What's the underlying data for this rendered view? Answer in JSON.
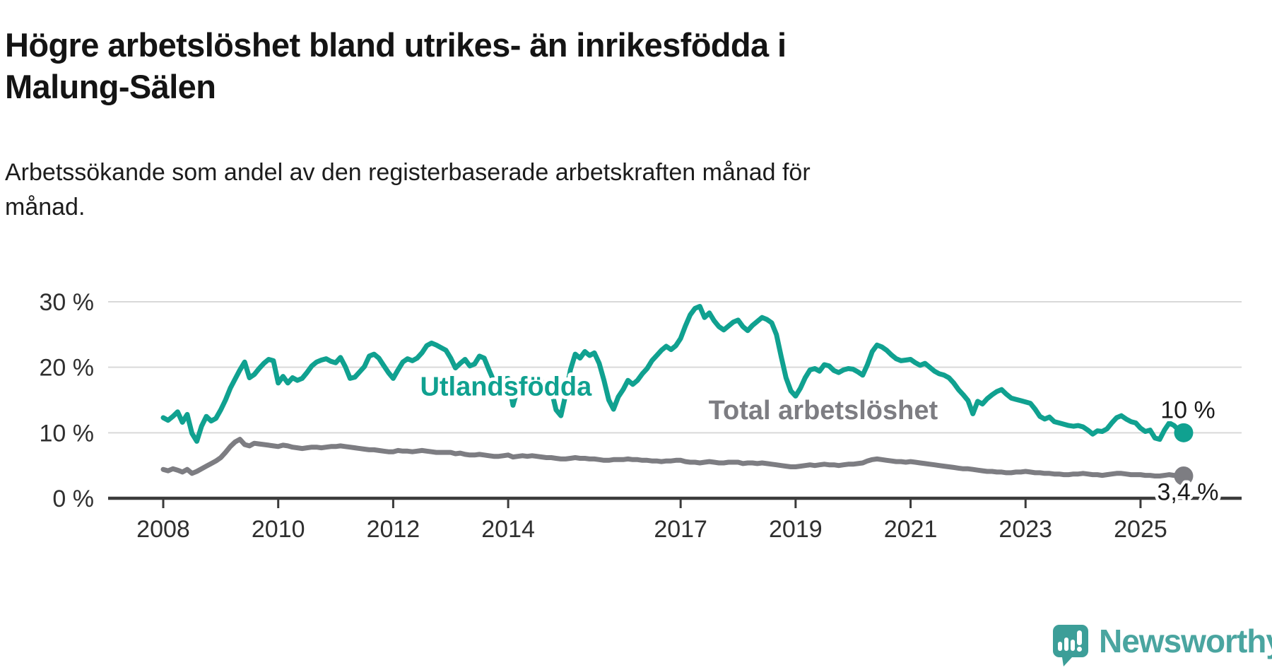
{
  "header": {
    "title_lines": [
      "Högre arbetslöshet bland utrikes- än inrikesfödda i",
      "Malung-Sälen"
    ],
    "subtitle_lines": [
      "Arbetssökande som andel av den registerbaserade arbetskraften månad för",
      "månad."
    ]
  },
  "colors": {
    "foreign_line": "#10A190",
    "total_line": "#7D7D82",
    "grid": "#D9D9D9",
    "axis": "#3B3B3B",
    "tick_text": "#2F2F2F",
    "end_label_text": "#1A1A1A",
    "logo_bubble": "#3C9E98",
    "logo_text": "#4AA5A0"
  },
  "chart_data": {
    "type": "line",
    "unit": "%",
    "start_month": "2008-01",
    "end_month": "2025-10",
    "points_per_year": 12,
    "ylim": [
      0,
      32
    ],
    "grid": true,
    "yticks": [
      {
        "value": 0,
        "label": "0 %"
      },
      {
        "value": 10,
        "label": "10 %"
      },
      {
        "value": 20,
        "label": "20 %"
      },
      {
        "value": 30,
        "label": "30 %"
      }
    ],
    "xticks": [
      {
        "year": 2008,
        "label": "2008"
      },
      {
        "year": 2010,
        "label": "2010"
      },
      {
        "year": 2012,
        "label": "2012"
      },
      {
        "year": 2014,
        "label": "2014"
      },
      {
        "year": 2017,
        "label": "2017"
      },
      {
        "year": 2019,
        "label": "2019"
      },
      {
        "year": 2021,
        "label": "2021"
      },
      {
        "year": 2023,
        "label": "2023"
      },
      {
        "year": 2025,
        "label": "2025"
      }
    ],
    "series": [
      {
        "name": "Utlandsfödda",
        "color": "#10A190",
        "end_label": "10 %",
        "values": [
          12.3,
          11.9,
          12.5,
          13.2,
          11.6,
          12.8,
          9.9,
          8.7,
          11.0,
          12.5,
          11.8,
          12.2,
          13.5,
          15.0,
          16.8,
          18.2,
          19.6,
          20.8,
          18.4,
          18.9,
          19.8,
          20.6,
          21.2,
          21.0,
          17.6,
          18.6,
          17.6,
          18.4,
          18.0,
          18.3,
          19.2,
          20.2,
          20.8,
          21.1,
          21.3,
          20.9,
          20.7,
          21.5,
          20.1,
          18.3,
          18.5,
          19.3,
          20.1,
          21.7,
          22.0,
          21.4,
          20.3,
          19.2,
          18.3,
          19.6,
          20.8,
          21.3,
          21.0,
          21.4,
          22.2,
          23.3,
          23.7,
          23.4,
          23.0,
          22.6,
          21.4,
          19.9,
          20.6,
          21.2,
          20.2,
          20.5,
          21.7,
          21.4,
          19.6,
          17.9,
          18.4,
          18.2,
          18.3,
          14.2,
          16.8,
          18.4,
          18.6,
          18.0,
          17.4,
          17.8,
          17.2,
          16.6,
          13.5,
          12.6,
          15.8,
          19.6,
          22.0,
          21.4,
          22.4,
          21.8,
          22.2,
          20.6,
          18.0,
          15.0,
          13.6,
          15.5,
          16.6,
          18.0,
          17.4,
          18.0,
          19.0,
          19.8,
          21.0,
          21.8,
          22.6,
          23.2,
          22.7,
          23.3,
          24.4,
          26.3,
          28.0,
          29.0,
          29.3,
          27.6,
          28.3,
          27.1,
          26.2,
          25.7,
          26.3,
          26.9,
          27.2,
          26.2,
          25.6,
          26.4,
          27.0,
          27.6,
          27.3,
          26.8,
          25.0,
          21.6,
          18.4,
          16.4,
          15.6,
          16.8,
          18.4,
          19.6,
          19.8,
          19.4,
          20.4,
          20.2,
          19.5,
          19.2,
          19.6,
          19.8,
          19.7,
          19.3,
          18.8,
          20.4,
          22.4,
          23.4,
          23.1,
          22.6,
          21.9,
          21.3,
          21.0,
          21.1,
          21.2,
          20.7,
          20.3,
          20.6,
          20.0,
          19.4,
          19.0,
          18.8,
          18.4,
          17.6,
          16.6,
          15.8,
          14.9,
          12.9,
          14.8,
          14.4,
          15.2,
          15.8,
          16.3,
          16.6,
          15.9,
          15.3,
          15.1,
          14.9,
          14.7,
          14.5,
          13.6,
          12.5,
          12.1,
          12.4,
          11.7,
          11.5,
          11.3,
          11.1,
          11.0,
          11.1,
          10.9,
          10.4,
          9.8,
          10.3,
          10.2,
          10.6,
          11.5,
          12.3,
          12.6,
          12.1,
          11.7,
          11.5,
          10.7,
          10.2,
          10.4,
          9.2,
          9.0,
          10.4,
          11.5,
          11.1,
          10.4,
          10.0
        ]
      },
      {
        "name": "Total arbetslöshet",
        "color": "#7D7D82",
        "end_label": "3,4 %",
        "values": [
          4.4,
          4.2,
          4.5,
          4.3,
          4.0,
          4.4,
          3.8,
          4.1,
          4.5,
          4.9,
          5.3,
          5.7,
          6.2,
          7.0,
          7.9,
          8.6,
          9.0,
          8.2,
          8.0,
          8.4,
          8.3,
          8.2,
          8.1,
          8.0,
          7.9,
          8.1,
          8.0,
          7.8,
          7.7,
          7.6,
          7.7,
          7.8,
          7.8,
          7.7,
          7.8,
          7.9,
          7.9,
          8.0,
          7.9,
          7.8,
          7.7,
          7.6,
          7.5,
          7.4,
          7.4,
          7.3,
          7.2,
          7.1,
          7.1,
          7.3,
          7.2,
          7.2,
          7.1,
          7.2,
          7.3,
          7.2,
          7.1,
          7.0,
          7.0,
          7.0,
          7.0,
          6.8,
          6.9,
          6.7,
          6.6,
          6.6,
          6.7,
          6.6,
          6.5,
          6.4,
          6.4,
          6.5,
          6.6,
          6.3,
          6.4,
          6.5,
          6.4,
          6.5,
          6.4,
          6.3,
          6.2,
          6.2,
          6.1,
          6.0,
          6.0,
          6.1,
          6.2,
          6.1,
          6.1,
          6.0,
          6.0,
          5.9,
          5.8,
          5.8,
          5.9,
          5.9,
          5.9,
          6.0,
          5.9,
          5.9,
          5.8,
          5.8,
          5.7,
          5.7,
          5.6,
          5.7,
          5.7,
          5.8,
          5.8,
          5.6,
          5.5,
          5.5,
          5.4,
          5.5,
          5.6,
          5.5,
          5.4,
          5.4,
          5.5,
          5.5,
          5.5,
          5.3,
          5.4,
          5.4,
          5.3,
          5.4,
          5.3,
          5.2,
          5.1,
          5.0,
          4.9,
          4.8,
          4.8,
          4.9,
          5.0,
          5.1,
          5.0,
          5.1,
          5.2,
          5.1,
          5.1,
          5.0,
          5.1,
          5.2,
          5.2,
          5.3,
          5.4,
          5.7,
          5.9,
          6.0,
          5.9,
          5.8,
          5.7,
          5.6,
          5.6,
          5.5,
          5.6,
          5.5,
          5.4,
          5.3,
          5.2,
          5.1,
          5.0,
          4.9,
          4.8,
          4.7,
          4.6,
          4.5,
          4.5,
          4.4,
          4.3,
          4.2,
          4.1,
          4.1,
          4.0,
          4.0,
          3.9,
          3.9,
          4.0,
          4.0,
          4.1,
          4.0,
          3.9,
          3.9,
          3.8,
          3.8,
          3.7,
          3.7,
          3.6,
          3.6,
          3.7,
          3.7,
          3.8,
          3.7,
          3.6,
          3.6,
          3.5,
          3.6,
          3.7,
          3.8,
          3.8,
          3.7,
          3.6,
          3.6,
          3.6,
          3.5,
          3.5,
          3.4,
          3.4,
          3.5,
          3.6,
          3.5,
          3.4,
          3.4
        ]
      }
    ],
    "series_labels": [
      {
        "text": "Utlandsfödda",
        "year": 2013.96,
        "value": 17.1,
        "color": "#10A190"
      },
      {
        "text": "Total arbetslöshet",
        "year": 2019.48,
        "value": 13.5,
        "color": "#7D7D82"
      }
    ]
  },
  "footer": {
    "brand": "Newsworthy"
  }
}
